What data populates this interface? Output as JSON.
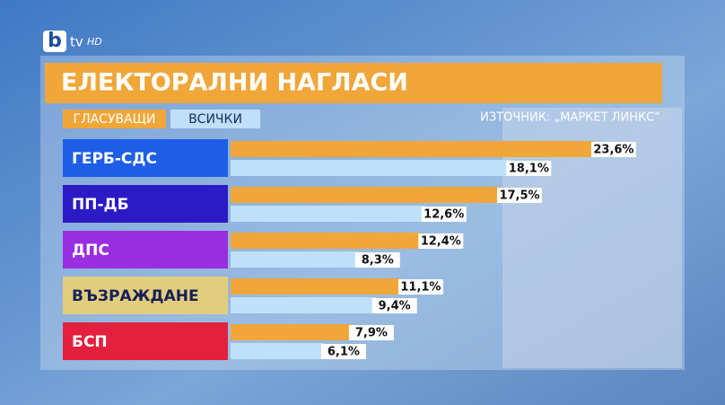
{
  "logo": {
    "main": "b",
    "sub": "tv",
    "tag": "HD"
  },
  "chart_data": {
    "type": "bar",
    "orientation": "horizontal",
    "title": "ЕЛЕКТОРАЛНИ НАГЛАСИ",
    "source": "ИЗТОЧНИК: „МАРКЕТ ЛИНКС“",
    "categories": [
      "ГЕРБ-СДС",
      "ПП-ДБ",
      "ДПС",
      "ВЪЗРАЖДАНЕ",
      "БСП"
    ],
    "category_colors": [
      "#1e5ee6",
      "#2c1bc4",
      "#9a2ee0",
      "#e2cd7c",
      "#e3203e"
    ],
    "series": [
      {
        "name": "ГЛАСУВАЩИ",
        "color": "#f0a638",
        "values": [
          23.6,
          17.5,
          12.4,
          11.1,
          7.9
        ],
        "value_labels": [
          "23,6%",
          "17,5%",
          "12,4%",
          "11,1%",
          "7,9%"
        ]
      },
      {
        "name": "ВСИЧКИ",
        "color": "#bfe0f8",
        "values": [
          18.1,
          12.6,
          8.3,
          9.4,
          6.1
        ],
        "value_labels": [
          "18,1%",
          "12,6%",
          "8,3%",
          "9,4%",
          "6,1%"
        ]
      }
    ]
  }
}
